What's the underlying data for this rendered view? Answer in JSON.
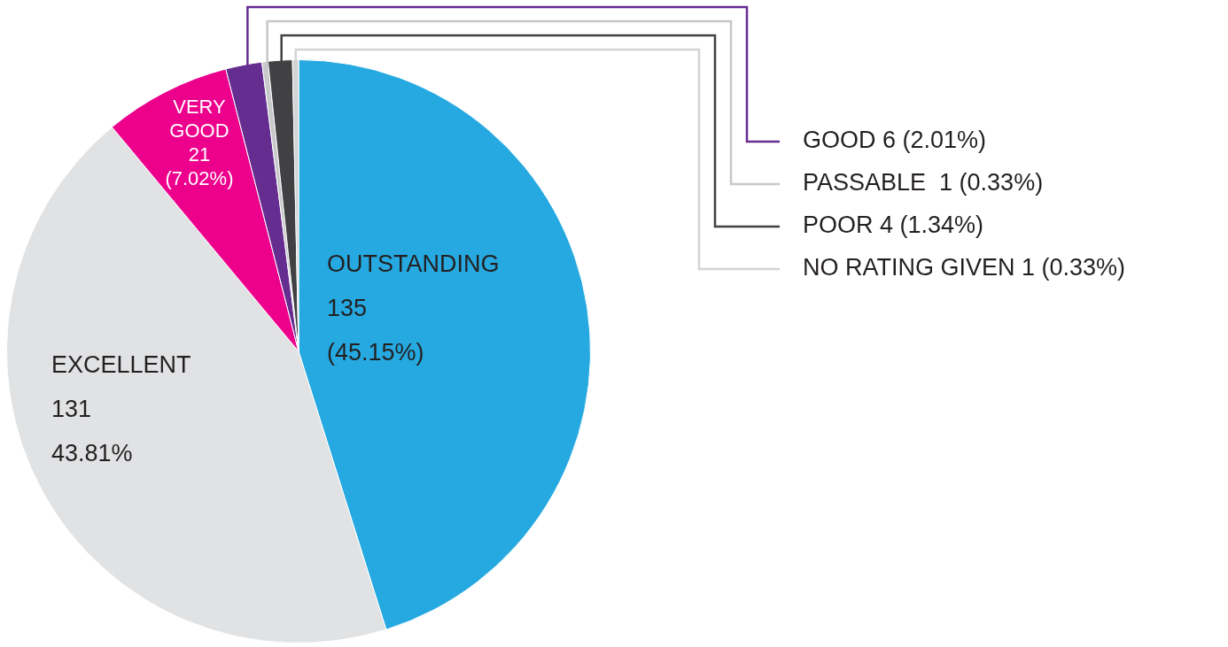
{
  "chart_data": {
    "type": "pie",
    "categories": [
      "OUTSTANDING",
      "EXCELLENT",
      "VERY GOOD",
      "GOOD",
      "PASSABLE ",
      "POOR",
      "NO RATING GIVEN"
    ],
    "values": [
      135,
      131,
      21,
      6,
      1,
      4,
      1
    ],
    "colors": [
      "#25a9e0",
      "#e1e2e4",
      "#ec008c",
      "#662d91",
      "#c7c8ca",
      "#414042",
      "#d1d3d4"
    ],
    "value_labels": [
      "135 (45.15%)",
      "131 43.81%",
      "21 (7.02%)",
      "6 (2.01%)",
      "1 (0.33%)",
      "4 (1.34%)",
      "1 (0.33%)"
    ],
    "legend": false
  }
}
